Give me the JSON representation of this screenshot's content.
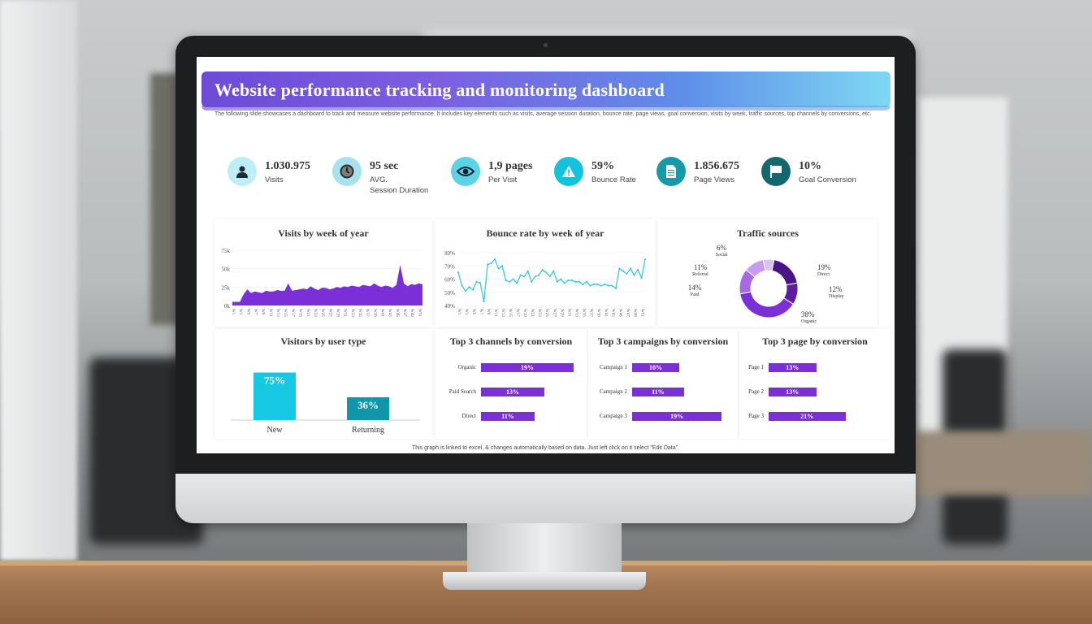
{
  "title": "Website performance tracking and monitoring dashboard",
  "subtitle": "The following slide showcases a dashboard to track and measure website performance. It includes key elements such as visits, average session duration, bounce rate, page views, goal conversion, visits by week, traffic sources, top channels by conversions, etc.",
  "kpis": [
    {
      "value": "1.030.975",
      "label": "Visits",
      "icon": "user-icon",
      "color": "#bdeef5"
    },
    {
      "value": "95 sec",
      "label": "AVG.",
      "label2": "Session Duration",
      "icon": "clock-icon",
      "color": "#a6e3ee"
    },
    {
      "value": "1,9 pages",
      "label": "Per Visit",
      "icon": "eye-icon",
      "color": "#5fd3e6"
    },
    {
      "value": "59%",
      "label": "Bounce Rate",
      "icon": "warning-icon",
      "color": "#13c2dc"
    },
    {
      "value": "1.856.675",
      "label": "Page Views",
      "icon": "document-icon",
      "color": "#159aa8"
    },
    {
      "value": "10%",
      "label": "Goal Conversion",
      "icon": "flag-icon",
      "color": "#12686e"
    }
  ],
  "footer": "This graph is linked to excel, & changes automatically based on data. Just left click on it select \"Edit Data\".",
  "chart_data": [
    {
      "type": "area",
      "title": "Visits by week of year",
      "ylim": [
        0,
        75000
      ],
      "yticks": [
        "75k",
        "50k",
        "25k",
        "0k"
      ],
      "x": [
        "W1",
        "W2",
        "W3",
        "W4",
        "W5",
        "W6",
        "W7",
        "W8",
        "W9",
        "W10",
        "W11",
        "W12",
        "W13",
        "W14",
        "W15",
        "W16",
        "W17",
        "W18",
        "W19",
        "W20",
        "W21",
        "W22",
        "W23",
        "W24",
        "W25",
        "W26",
        "W27",
        "W28",
        "W29",
        "W30",
        "W31",
        "W32",
        "W33",
        "W34",
        "W35",
        "W36",
        "W37",
        "W38",
        "W39",
        "W40",
        "W41",
        "W42",
        "W43",
        "W44",
        "W45",
        "W46",
        "W47",
        "W48",
        "W49",
        "W50",
        "W51",
        "W52"
      ],
      "values": [
        5000,
        5000,
        5000,
        15000,
        22000,
        17000,
        19000,
        18000,
        17000,
        20000,
        19000,
        19000,
        21000,
        20000,
        20000,
        30000,
        20000,
        21000,
        22000,
        23000,
        22000,
        26000,
        23000,
        21000,
        24000,
        24000,
        22000,
        23000,
        25000,
        24000,
        26000,
        25000,
        27000,
        26000,
        25000,
        28000,
        27000,
        26000,
        30000,
        27000,
        25000,
        27000,
        26000,
        24000,
        28000,
        55000,
        30000,
        26000,
        29000,
        28000,
        30000,
        29000
      ],
      "color": "#7b2fd6"
    },
    {
      "type": "line",
      "title": "Bounce rate by week of year",
      "ylim": [
        40,
        80
      ],
      "yticks": [
        "80%",
        "70%",
        "60%",
        "50%",
        "40%"
      ],
      "x": [
        "W1",
        "W2",
        "W3",
        "W4",
        "W5",
        "W6",
        "W7",
        "W8",
        "W9",
        "W10",
        "W11",
        "W12",
        "W13",
        "W14",
        "W15",
        "W16",
        "W17",
        "W18",
        "W19",
        "W20",
        "W21",
        "W22",
        "W23",
        "W24",
        "W25",
        "W26",
        "W27",
        "W28",
        "W29",
        "W30",
        "W31",
        "W32",
        "W33",
        "W34",
        "W35",
        "W36",
        "W37",
        "W38",
        "W39",
        "W40",
        "W41",
        "W42",
        "W43",
        "W44",
        "W45",
        "W46",
        "W47",
        "W48",
        "W49",
        "W50",
        "W51",
        "W52"
      ],
      "values": [
        65,
        55,
        51,
        54,
        52,
        58,
        57,
        43,
        71,
        72,
        75,
        68,
        70,
        59,
        58,
        60,
        57,
        63,
        62,
        66,
        58,
        62,
        63,
        67,
        65,
        62,
        66,
        58,
        60,
        57,
        59,
        59,
        58,
        58,
        56,
        58,
        55,
        56,
        56,
        55,
        56,
        55,
        55,
        53,
        68,
        66,
        64,
        68,
        63,
        67,
        61,
        75
      ],
      "color": "#3cc9d8"
    },
    {
      "type": "pie",
      "title": "Traffic sources",
      "categories": [
        "Social",
        "Direct",
        "Display",
        "Organic",
        "Paid",
        "Referral"
      ],
      "values": [
        6,
        19,
        12,
        38,
        14,
        11
      ],
      "labels": [
        "6%",
        "19%",
        "12%",
        "38%",
        "14%",
        "11%"
      ],
      "colors": [
        "#d9c4f0",
        "#4a1486",
        "#5d1c9e",
        "#7b2fd6",
        "#a66ae6",
        "#c59cf0"
      ]
    },
    {
      "type": "bar",
      "title": "Visitors by user type",
      "categories": [
        "New",
        "Returning"
      ],
      "values": [
        75,
        36
      ],
      "labels": [
        "75%",
        "36%"
      ],
      "colors": [
        "#17c8e2",
        "#1196a8"
      ]
    },
    {
      "type": "bar",
      "orientation": "horizontal",
      "title": "Top 3 channels by conversion",
      "categories": [
        "Organic",
        "Paid Search",
        "Direct"
      ],
      "values": [
        19,
        13,
        11
      ],
      "labels": [
        "19%",
        "13%",
        "11%"
      ]
    },
    {
      "type": "bar",
      "orientation": "horizontal",
      "title": "Top 3 campaigns by conversion",
      "categories": [
        "Campaign 1",
        "Campaign 2",
        "Campaign 3"
      ],
      "values": [
        10,
        11,
        19
      ],
      "labels": [
        "10%",
        "11%",
        "19%"
      ]
    },
    {
      "type": "bar",
      "orientation": "horizontal",
      "title": "Top 3 page by conversion",
      "categories": [
        "Page 1",
        "Page 2",
        "Page 3"
      ],
      "values": [
        13,
        13,
        21
      ],
      "labels": [
        "13%",
        "13%",
        "21%"
      ]
    }
  ]
}
